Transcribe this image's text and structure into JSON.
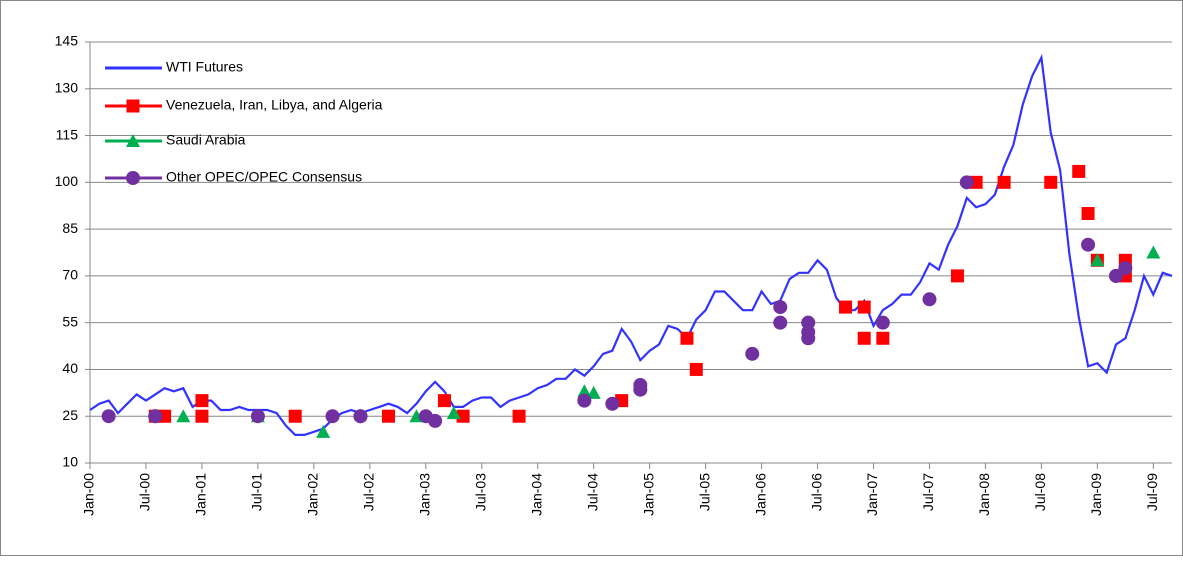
{
  "chart_data": {
    "type": "line",
    "xlim": [
      "Jan-00",
      "Sep-09"
    ],
    "xticks": [
      "Jan-00",
      "Jul-00",
      "Jan-01",
      "Jul-01",
      "Jan-02",
      "Jul-02",
      "Jan-03",
      "Jul-03",
      "Jan-04",
      "Jul-04",
      "Jan-05",
      "Jul-05",
      "Jan-06",
      "Jul-06",
      "Jan-07",
      "Jul-07",
      "Jan-08",
      "Jul-08",
      "Jan-09",
      "Jul-09"
    ],
    "ylim": [
      10,
      145
    ],
    "yticks": [
      10,
      25,
      40,
      55,
      70,
      85,
      100,
      115,
      130,
      145
    ],
    "grid": true,
    "legend": "upper left",
    "series": [
      {
        "name": "WTI Futures",
        "type": "line",
        "color": "#3333ff",
        "x": [
          "Jan-00",
          "Feb-00",
          "Mar-00",
          "Apr-00",
          "May-00",
          "Jun-00",
          "Jul-00",
          "Aug-00",
          "Sep-00",
          "Oct-00",
          "Nov-00",
          "Dec-00",
          "Jan-01",
          "Feb-01",
          "Mar-01",
          "Apr-01",
          "May-01",
          "Jun-01",
          "Jul-01",
          "Aug-01",
          "Sep-01",
          "Oct-01",
          "Nov-01",
          "Dec-01",
          "Jan-02",
          "Feb-02",
          "Mar-02",
          "Apr-02",
          "May-02",
          "Jun-02",
          "Jul-02",
          "Aug-02",
          "Sep-02",
          "Oct-02",
          "Nov-02",
          "Dec-02",
          "Jan-03",
          "Feb-03",
          "Mar-03",
          "Apr-03",
          "May-03",
          "Jun-03",
          "Jul-03",
          "Aug-03",
          "Sep-03",
          "Oct-03",
          "Nov-03",
          "Dec-03",
          "Jan-04",
          "Feb-04",
          "Mar-04",
          "Apr-04",
          "May-04",
          "Jun-04",
          "Jul-04",
          "Aug-04",
          "Sep-04",
          "Oct-04",
          "Nov-04",
          "Dec-04",
          "Jan-05",
          "Feb-05",
          "Mar-05",
          "Apr-05",
          "May-05",
          "Jun-05",
          "Jul-05",
          "Aug-05",
          "Sep-05",
          "Oct-05",
          "Nov-05",
          "Dec-05",
          "Jan-06",
          "Feb-06",
          "Mar-06",
          "Apr-06",
          "May-06",
          "Jun-06",
          "Jul-06",
          "Aug-06",
          "Sep-06",
          "Oct-06",
          "Nov-06",
          "Dec-06",
          "Jan-07",
          "Feb-07",
          "Mar-07",
          "Apr-07",
          "May-07",
          "Jun-07",
          "Jul-07",
          "Aug-07",
          "Sep-07",
          "Oct-07",
          "Nov-07",
          "Dec-07",
          "Jan-08",
          "Feb-08",
          "Mar-08",
          "Apr-08",
          "May-08",
          "Jun-08",
          "Jul-08",
          "Aug-08",
          "Sep-08",
          "Oct-08",
          "Nov-08",
          "Dec-08",
          "Jan-09",
          "Feb-09",
          "Mar-09",
          "Apr-09",
          "May-09",
          "Jun-09",
          "Jul-09",
          "Aug-09",
          "Sep-09"
        ],
        "values": [
          27,
          29,
          30,
          26,
          29,
          32,
          30,
          32,
          34,
          33,
          34,
          28,
          30,
          30,
          27,
          27,
          28,
          27,
          27,
          27,
          26,
          22,
          19,
          19,
          20,
          21,
          24,
          26,
          27,
          26,
          27,
          28,
          29,
          28,
          26,
          29,
          33,
          36,
          33,
          28,
          28,
          30,
          31,
          31,
          28,
          30,
          31,
          32,
          34,
          35,
          37,
          37,
          40,
          38,
          41,
          45,
          46,
          53,
          49,
          43,
          46,
          48,
          54,
          53,
          50,
          56,
          59,
          65,
          65,
          62,
          59,
          59,
          65,
          61,
          62,
          69,
          71,
          71,
          75,
          72,
          63,
          59,
          59,
          62,
          54,
          59,
          61,
          64,
          64,
          68,
          74,
          72,
          80,
          86,
          95,
          92,
          93,
          96,
          105,
          112,
          125,
          134,
          140,
          116,
          104,
          77,
          57,
          41,
          42,
          39,
          48,
          50,
          59,
          70,
          64,
          71,
          70
        ]
      },
      {
        "name": "Venezuela, Iran, Libya, and Algeria",
        "type": "scatter",
        "marker": "square",
        "color": "#ff0000",
        "x": [
          "Aug-00",
          "Sep-00",
          "Jan-01",
          "Jan-01",
          "Nov-01",
          "Sep-02",
          "Mar-03",
          "May-03",
          "Nov-03",
          "Oct-04",
          "May-05",
          "Jun-05",
          "Oct-06",
          "Dec-06",
          "Dec-06",
          "Feb-07",
          "Oct-07",
          "Dec-07",
          "Mar-08",
          "Aug-08",
          "Nov-08",
          "Dec-08",
          "Jan-09",
          "Apr-09",
          "Apr-09"
        ],
        "values": [
          25,
          25,
          30,
          25,
          25,
          25,
          30,
          25,
          25,
          30,
          50,
          40,
          60,
          60,
          50,
          50,
          70,
          100,
          100,
          100,
          103.5,
          90,
          75,
          75,
          70
        ]
      },
      {
        "name": "Saudi Arabia",
        "type": "scatter",
        "marker": "triangle",
        "color": "#00b050",
        "x": [
          "Nov-00",
          "Jul-01",
          "Feb-02",
          "Dec-02",
          "Apr-03",
          "Jun-04",
          "Jul-04",
          "Jan-09",
          "Jul-09"
        ],
        "values": [
          25,
          25,
          20,
          25,
          26,
          33,
          32.5,
          75,
          77.5
        ]
      },
      {
        "name": "Other OPEC/OPEC Consensus",
        "type": "scatter",
        "marker": "circle",
        "color": "#7030a0",
        "x": [
          "Mar-00",
          "Aug-00",
          "Aug-00",
          "Jul-01",
          "Mar-02",
          "Jun-02",
          "Jun-02",
          "Jan-03",
          "Feb-03",
          "Jun-04",
          "Sep-04",
          "Dec-04",
          "Dec-04",
          "Dec-05",
          "Mar-06",
          "Mar-06",
          "Jun-06",
          "Jun-06",
          "Jun-06",
          "Feb-07",
          "Jul-07",
          "Nov-07",
          "Dec-08",
          "Mar-09",
          "Mar-09",
          "Apr-09"
        ],
        "values": [
          25,
          25,
          25,
          25,
          25,
          25,
          25,
          25,
          23.5,
          30,
          29,
          33.5,
          35,
          45,
          60,
          55,
          55,
          52,
          50,
          55,
          62.5,
          100,
          80,
          70,
          70,
          72.5
        ]
      }
    ]
  }
}
